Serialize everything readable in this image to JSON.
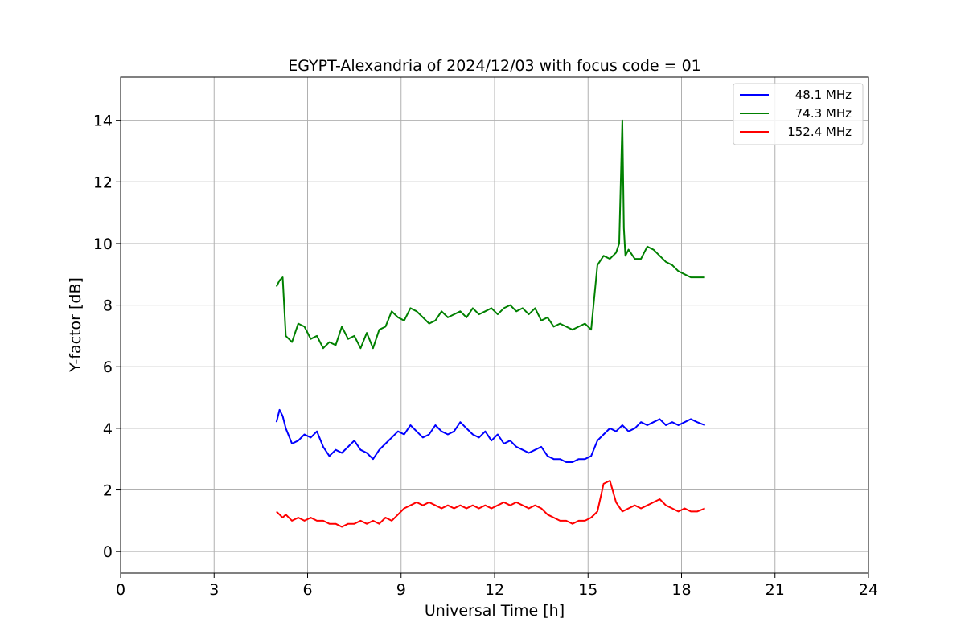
{
  "chart_data": {
    "type": "line",
    "title": "EGYPT-Alexandria of 2024/12/03 with focus code = 01",
    "xlabel": "Universal Time [h]",
    "ylabel": "Y-factor [dB]",
    "xlim": [
      0,
      24
    ],
    "ylim": [
      -0.7,
      15.4
    ],
    "xticks": [
      "0",
      "3",
      "6",
      "9",
      "12",
      "15",
      "18",
      "21",
      "24"
    ],
    "yticks": [
      "0",
      "2",
      "4",
      "6",
      "8",
      "10",
      "12",
      "14"
    ],
    "grid": true,
    "legend_position": "top-right",
    "series": [
      {
        "name": "48.1 MHz",
        "color": "#0000ff",
        "x": [
          5.0,
          5.1,
          5.2,
          5.3,
          5.5,
          5.7,
          5.9,
          6.1,
          6.3,
          6.5,
          6.7,
          6.9,
          7.1,
          7.3,
          7.5,
          7.7,
          7.9,
          8.1,
          8.3,
          8.5,
          8.7,
          8.9,
          9.1,
          9.3,
          9.5,
          9.7,
          9.9,
          10.1,
          10.3,
          10.5,
          10.7,
          10.9,
          11.1,
          11.3,
          11.5,
          11.7,
          11.9,
          12.1,
          12.3,
          12.5,
          12.7,
          12.9,
          13.1,
          13.3,
          13.5,
          13.7,
          13.9,
          14.1,
          14.3,
          14.5,
          14.7,
          14.9,
          15.1,
          15.3,
          15.5,
          15.7,
          15.9,
          16.1,
          16.3,
          16.5,
          16.7,
          16.9,
          17.1,
          17.3,
          17.5,
          17.7,
          17.9,
          18.1,
          18.3,
          18.5,
          18.75
        ],
        "y": [
          4.2,
          4.6,
          4.4,
          4.0,
          3.5,
          3.6,
          3.8,
          3.7,
          3.9,
          3.4,
          3.1,
          3.3,
          3.2,
          3.4,
          3.6,
          3.3,
          3.2,
          3.0,
          3.3,
          3.5,
          3.7,
          3.9,
          3.8,
          4.1,
          3.9,
          3.7,
          3.8,
          4.1,
          3.9,
          3.8,
          3.9,
          4.2,
          4.0,
          3.8,
          3.7,
          3.9,
          3.6,
          3.8,
          3.5,
          3.6,
          3.4,
          3.3,
          3.2,
          3.3,
          3.4,
          3.1,
          3.0,
          3.0,
          2.9,
          2.9,
          3.0,
          3.0,
          3.1,
          3.6,
          3.8,
          4.0,
          3.9,
          4.1,
          3.9,
          4.0,
          4.2,
          4.1,
          4.2,
          4.3,
          4.1,
          4.2,
          4.1,
          4.2,
          4.3,
          4.2,
          4.1
        ]
      },
      {
        "name": "74.3 MHz",
        "color": "#008000",
        "x": [
          5.0,
          5.1,
          5.2,
          5.3,
          5.5,
          5.7,
          5.9,
          6.1,
          6.3,
          6.5,
          6.7,
          6.9,
          7.1,
          7.3,
          7.5,
          7.7,
          7.9,
          8.1,
          8.3,
          8.5,
          8.7,
          8.9,
          9.1,
          9.3,
          9.5,
          9.7,
          9.9,
          10.1,
          10.3,
          10.5,
          10.7,
          10.9,
          11.1,
          11.3,
          11.5,
          11.7,
          11.9,
          12.1,
          12.3,
          12.5,
          12.7,
          12.9,
          13.1,
          13.3,
          13.5,
          13.7,
          13.9,
          14.1,
          14.3,
          14.5,
          14.7,
          14.9,
          15.1,
          15.3,
          15.5,
          15.7,
          15.9,
          16.0,
          16.1,
          16.15,
          16.2,
          16.3,
          16.5,
          16.7,
          16.9,
          17.1,
          17.3,
          17.5,
          17.7,
          17.9,
          18.1,
          18.3,
          18.5,
          18.75
        ],
        "y": [
          8.6,
          8.8,
          8.9,
          7.0,
          6.8,
          7.4,
          7.3,
          6.9,
          7.0,
          6.6,
          6.8,
          6.7,
          7.3,
          6.9,
          7.0,
          6.6,
          7.1,
          6.6,
          7.2,
          7.3,
          7.8,
          7.6,
          7.5,
          7.9,
          7.8,
          7.6,
          7.4,
          7.5,
          7.8,
          7.6,
          7.7,
          7.8,
          7.6,
          7.9,
          7.7,
          7.8,
          7.9,
          7.7,
          7.9,
          8.0,
          7.8,
          7.9,
          7.7,
          7.9,
          7.5,
          7.6,
          7.3,
          7.4,
          7.3,
          7.2,
          7.3,
          7.4,
          7.2,
          9.3,
          9.6,
          9.5,
          9.7,
          10.0,
          14.0,
          10.5,
          9.6,
          9.8,
          9.5,
          9.5,
          9.9,
          9.8,
          9.6,
          9.4,
          9.3,
          9.1,
          9.0,
          8.9,
          8.9,
          8.9
        ]
      },
      {
        "name": "152.4 MHz",
        "color": "#ff0000",
        "x": [
          5.0,
          5.1,
          5.2,
          5.3,
          5.5,
          5.7,
          5.9,
          6.1,
          6.3,
          6.5,
          6.7,
          6.9,
          7.1,
          7.3,
          7.5,
          7.7,
          7.9,
          8.1,
          8.3,
          8.5,
          8.7,
          8.9,
          9.1,
          9.3,
          9.5,
          9.7,
          9.9,
          10.1,
          10.3,
          10.5,
          10.7,
          10.9,
          11.1,
          11.3,
          11.5,
          11.7,
          11.9,
          12.1,
          12.3,
          12.5,
          12.7,
          12.9,
          13.1,
          13.3,
          13.5,
          13.7,
          13.9,
          14.1,
          14.3,
          14.5,
          14.7,
          14.9,
          15.1,
          15.3,
          15.5,
          15.7,
          15.9,
          16.1,
          16.3,
          16.5,
          16.7,
          16.9,
          17.1,
          17.3,
          17.5,
          17.7,
          17.9,
          18.1,
          18.3,
          18.5,
          18.75
        ],
        "y": [
          1.3,
          1.2,
          1.1,
          1.2,
          1.0,
          1.1,
          1.0,
          1.1,
          1.0,
          1.0,
          0.9,
          0.9,
          0.8,
          0.9,
          0.9,
          1.0,
          0.9,
          1.0,
          0.9,
          1.1,
          1.0,
          1.2,
          1.4,
          1.5,
          1.6,
          1.5,
          1.6,
          1.5,
          1.4,
          1.5,
          1.4,
          1.5,
          1.4,
          1.5,
          1.4,
          1.5,
          1.4,
          1.5,
          1.6,
          1.5,
          1.6,
          1.5,
          1.4,
          1.5,
          1.4,
          1.2,
          1.1,
          1.0,
          1.0,
          0.9,
          1.0,
          1.0,
          1.1,
          1.3,
          2.2,
          2.3,
          1.6,
          1.3,
          1.4,
          1.5,
          1.4,
          1.5,
          1.6,
          1.7,
          1.5,
          1.4,
          1.3,
          1.4,
          1.3,
          1.3,
          1.4
        ]
      }
    ]
  }
}
